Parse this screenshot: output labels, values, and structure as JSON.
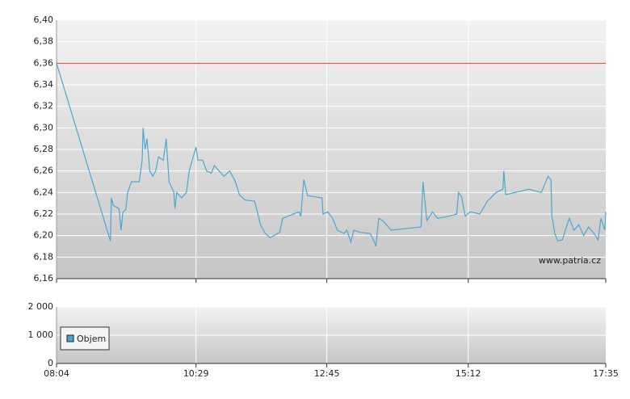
{
  "chart_data": [
    {
      "type": "line",
      "annotation": "www.patria.cz",
      "x": [
        "08:04",
        "09:00",
        "09:01",
        "09:03",
        "09:09",
        "09:11",
        "09:13",
        "09:16",
        "09:18",
        "09:22",
        "09:30",
        "09:33",
        "09:34",
        "09:36",
        "09:38",
        "09:41",
        "09:44",
        "09:47",
        "09:50",
        "09:55",
        "09:58",
        "10:01",
        "10:06",
        "10:07",
        "10:09",
        "10:14",
        "10:19",
        "10:22",
        "10:26",
        "10:29",
        "10:31",
        "10:36",
        "10:40",
        "10:45",
        "10:48",
        "10:53",
        "10:58",
        "11:04",
        "11:10",
        "11:14",
        "11:20",
        "11:30",
        "11:36",
        "11:41",
        "11:46",
        "11:56",
        "11:59",
        "12:16",
        "12:18",
        "12:21",
        "12:25",
        "12:40",
        "12:41",
        "12:46",
        "12:51",
        "12:56",
        "13:03",
        "13:06",
        "13:10",
        "13:13",
        "13:20",
        "13:30",
        "13:34",
        "13:36",
        "13:39",
        "13:43",
        "13:52",
        "14:23",
        "14:25",
        "14:29",
        "14:35",
        "14:40",
        "14:52",
        "15:00",
        "15:02",
        "15:05",
        "15:09",
        "15:14",
        "15:24",
        "15:32",
        "15:41",
        "15:48",
        "15:49",
        "15:51",
        "16:15",
        "16:28",
        "16:35",
        "16:38",
        "16:39",
        "16:42",
        "16:45",
        "16:50",
        "16:53",
        "16:57",
        "17:02",
        "17:07",
        "17:12",
        "17:17",
        "17:22",
        "17:27",
        "17:30",
        "17:34",
        "17:35"
      ],
      "series": [
        {
          "color": "#4aa8d0",
          "values": [
            6.36,
            6.195,
            6.235,
            6.228,
            6.225,
            6.205,
            6.222,
            6.224,
            6.24,
            6.25,
            6.25,
            6.27,
            6.3,
            6.28,
            6.29,
            6.26,
            6.255,
            6.26,
            6.273,
            6.27,
            6.29,
            6.25,
            6.24,
            6.225,
            6.24,
            6.235,
            6.24,
            6.26,
            6.273,
            6.282,
            6.27,
            6.27,
            6.26,
            6.258,
            6.265,
            6.26,
            6.255,
            6.26,
            6.25,
            6.238,
            6.233,
            6.232,
            6.21,
            6.202,
            6.198,
            6.203,
            6.216,
            6.222,
            6.218,
            6.252,
            6.237,
            6.235,
            6.22,
            6.222,
            6.216,
            6.205,
            6.202,
            6.205,
            6.194,
            6.205,
            6.203,
            6.202,
            6.195,
            6.19,
            6.216,
            6.214,
            6.205,
            6.208,
            6.25,
            6.214,
            6.222,
            6.216,
            6.218,
            6.22,
            6.24,
            6.236,
            6.218,
            6.222,
            6.22,
            6.232,
            6.24,
            6.243,
            6.26,
            6.238,
            6.243,
            6.24,
            6.255,
            6.252,
            6.218,
            6.202,
            6.195,
            6.196,
            6.205,
            6.216,
            6.205,
            6.21,
            6.2,
            6.208,
            6.203,
            6.196,
            6.216,
            6.205,
            6.222
          ]
        }
      ],
      "reference_line": {
        "value": 6.36,
        "color": "#e04030"
      },
      "xlim": [
        "08:04",
        "17:35"
      ],
      "xticks": [
        "08:04",
        "10:29",
        "12:45",
        "15:12",
        "17:35"
      ],
      "ylim": [
        6.16,
        6.4
      ],
      "yticks": [
        {
          "value": 6.16,
          "label": "6,16"
        },
        {
          "value": 6.18,
          "label": "6,18"
        },
        {
          "value": 6.2,
          "label": "6,20"
        },
        {
          "value": 6.22,
          "label": "6,22"
        },
        {
          "value": 6.24,
          "label": "6,24"
        },
        {
          "value": 6.26,
          "label": "6,26"
        },
        {
          "value": 6.28,
          "label": "6,28"
        },
        {
          "value": 6.3,
          "label": "6,30"
        },
        {
          "value": 6.32,
          "label": "6,32"
        },
        {
          "value": 6.34,
          "label": "6,34"
        },
        {
          "value": 6.36,
          "label": "6,36"
        },
        {
          "value": 6.38,
          "label": "6,38"
        },
        {
          "value": 6.4,
          "label": "6,40"
        }
      ],
      "grid": true
    },
    {
      "type": "bar",
      "series": [
        {
          "name": "Objem",
          "color": "#4a9fd8",
          "values": []
        }
      ],
      "ylim": [
        0,
        2000
      ],
      "yticks": [
        0,
        {
          "value": 1000,
          "label": "1 000"
        },
        {
          "value": 2000,
          "label": "2 000"
        }
      ],
      "grid": true,
      "legend": "left"
    }
  ]
}
